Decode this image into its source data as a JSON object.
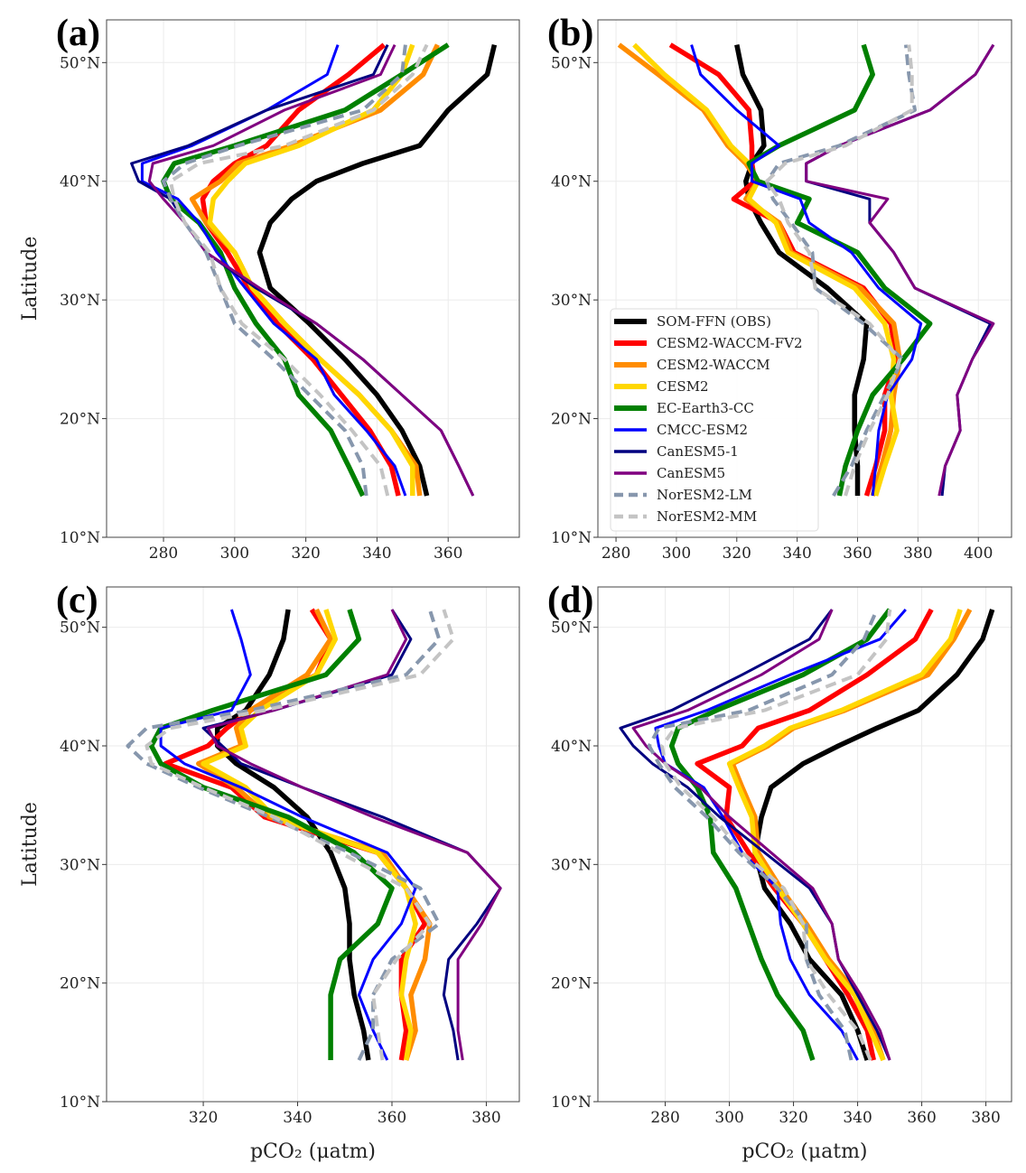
{
  "latitudes": [
    13.5,
    16,
    19,
    22,
    25,
    28,
    31,
    34,
    36.5,
    38.5,
    40,
    41.5,
    43,
    46,
    49,
    51.5
  ],
  "series_styles": [
    {
      "name": "SOM-FFN (OBS)",
      "color": "#000000",
      "style": "thick"
    },
    {
      "name": "CESM2-WACCM-FV2",
      "color": "#ff0000",
      "style": "thick"
    },
    {
      "name": "CESM2-WACCM",
      "color": "#ff8c00",
      "style": "thick"
    },
    {
      "name": "CESM2",
      "color": "#ffd700",
      "style": "thick"
    },
    {
      "name": "EC-Earth3-CC",
      "color": "#008000",
      "style": "thick"
    },
    {
      "name": "CMCC-ESM2",
      "color": "#0000ff",
      "style": "thin"
    },
    {
      "name": "CanESM5-1",
      "color": "#000080",
      "style": "thin"
    },
    {
      "name": "CanESM5",
      "color": "#800080",
      "style": "thin"
    },
    {
      "name": "NorESM2-LM",
      "color": "#8797ad",
      "style": "dashed"
    },
    {
      "name": "NorESM2-MM",
      "color": "#c4c4c4",
      "style": "dashed"
    }
  ],
  "chart_data": [
    {
      "type": "line",
      "label": "(a)",
      "xlabel": "",
      "ylabel": "Latitude",
      "xlim": [
        264,
        380
      ],
      "ylim": [
        10,
        53.6
      ],
      "grid": true,
      "xticks": [
        280,
        300,
        320,
        340,
        360
      ],
      "xtick_labels": [
        "280",
        "300",
        "320",
        "340",
        "360"
      ],
      "yticks": [
        10,
        20,
        30,
        40,
        50
      ],
      "ytick_labels": [
        "10°N",
        "20°N",
        "30°N",
        "40°N",
        "50°N"
      ],
      "series": [
        {
          "name": "SOM-FFN (OBS)",
          "values": [
            354,
            352,
            347,
            340,
            331,
            321,
            310,
            307,
            310,
            316,
            323,
            336,
            352,
            360,
            371,
            373
          ]
        },
        {
          "name": "CESM2-WACCM-FV2",
          "values": [
            346,
            344,
            338,
            330,
            322,
            312,
            304,
            298,
            292,
            291,
            294,
            300,
            309,
            318,
            332,
            342
          ]
        },
        {
          "name": "CESM2-WACCM",
          "values": [
            352,
            351,
            344,
            335,
            324,
            314,
            305,
            300,
            292,
            288,
            296,
            301,
            316,
            341,
            353,
            357
          ]
        },
        {
          "name": "CESM2",
          "values": [
            350,
            350,
            344,
            335,
            324,
            314,
            305,
            300,
            293,
            294,
            298,
            303,
            318,
            339,
            347,
            350
          ]
        },
        {
          "name": "EC-Earth3-CC",
          "values": [
            336,
            332,
            327,
            318,
            314,
            306,
            300,
            296,
            290,
            282,
            280,
            283,
            300,
            331,
            347,
            360
          ]
        },
        {
          "name": "CMCC-ESM2",
          "values": [
            348,
            345,
            337,
            328,
            323,
            311,
            303,
            295,
            290,
            284,
            274,
            274,
            288,
            309,
            326,
            329
          ]
        },
        {
          "name": "CanESM5-1",
          "values": [
            367,
            363,
            358,
            347,
            336,
            323,
            306,
            292,
            286,
            282,
            273,
            271,
            287,
            309,
            339,
            343
          ]
        },
        {
          "name": "CanESM5",
          "values": [
            367,
            363,
            358,
            347,
            336,
            323,
            307,
            292,
            286,
            280,
            276,
            277,
            294,
            314,
            341,
            345
          ]
        },
        {
          "name": "NorESM2-LM",
          "values": [
            337,
            336,
            331,
            321,
            311,
            300,
            296,
            292,
            286,
            282,
            280,
            286,
            301,
            336,
            347,
            348
          ]
        },
        {
          "name": "NorESM2-MM",
          "values": [
            343,
            341,
            333,
            324,
            314,
            302,
            296,
            293,
            286,
            283,
            282,
            290,
            314,
            339,
            350,
            354
          ]
        }
      ]
    },
    {
      "type": "line",
      "label": "(b)",
      "xlabel": "",
      "ylabel": "",
      "xlim": [
        274,
        411
      ],
      "ylim": [
        10,
        53.6
      ],
      "grid": true,
      "legend": "inside-lower-left",
      "xticks": [
        280,
        300,
        320,
        340,
        360,
        380,
        400
      ],
      "xtick_labels": [
        "280",
        "300",
        "320",
        "340",
        "360",
        "380",
        "400"
      ],
      "yticks": [
        10,
        20,
        30,
        40,
        50
      ],
      "ytick_labels": [
        "10°N",
        "20°N",
        "30°N",
        "40°N",
        "50°N"
      ],
      "series": [
        {
          "name": "SOM-FFN (OBS)",
          "values": [
            360,
            360,
            359,
            359,
            362,
            363,
            350,
            334,
            328,
            324,
            323,
            325,
            329,
            328,
            322,
            320
          ]
        },
        {
          "name": "CESM2-WACCM-FV2",
          "values": [
            363,
            366,
            369,
            369,
            373,
            371,
            362,
            339,
            334,
            319,
            326,
            325,
            325,
            324,
            314,
            298
          ]
        },
        {
          "name": "CESM2-WACCM",
          "values": [
            365,
            368,
            371,
            372,
            374,
            372,
            361,
            338,
            334,
            323,
            327,
            323,
            317,
            309,
            294,
            281
          ]
        },
        {
          "name": "CESM2",
          "values": [
            366,
            369,
            373,
            371,
            372,
            369,
            359,
            337,
            333,
            324,
            327,
            324,
            318,
            310,
            296,
            286
          ]
        },
        {
          "name": "EC-Earth3-CC",
          "values": [
            354,
            356,
            360,
            365,
            375,
            384,
            369,
            360,
            340,
            344,
            327,
            324,
            334,
            359,
            365,
            362
          ]
        },
        {
          "name": "CMCC-ESM2",
          "values": [
            365,
            366,
            367,
            370,
            378,
            381,
            367,
            358,
            344,
            341,
            325,
            325,
            334,
            320,
            308,
            305
          ]
        },
        {
          "name": "CanESM5-1",
          "values": [
            388,
            389,
            394,
            393,
            398,
            404,
            379,
            372,
            364,
            364,
            343,
            343,
            354,
            384,
            399,
            405
          ]
        },
        {
          "name": "CanESM5",
          "values": [
            387,
            389,
            394,
            393,
            398,
            405,
            379,
            372,
            364,
            370,
            343,
            343,
            354,
            384,
            399,
            405
          ]
        },
        {
          "name": "NorESM2-LM",
          "values": [
            352,
            358,
            363,
            369,
            375,
            362,
            346,
            345,
            338,
            332,
            330,
            334,
            354,
            379,
            377,
            376
          ]
        },
        {
          "name": "NorESM2-MM",
          "values": [
            356,
            359,
            364,
            370,
            374,
            364,
            346,
            344,
            337,
            334,
            330,
            336,
            356,
            378,
            378,
            377
          ]
        }
      ]
    },
    {
      "type": "line",
      "label": "(c)",
      "xlabel": "pCO₂ (μatm)",
      "ylabel": "Latitude",
      "xlim": [
        299.5,
        387
      ],
      "ylim": [
        10,
        53.4
      ],
      "grid": true,
      "xticks": [
        320,
        340,
        360,
        380
      ],
      "xtick_labels": [
        "320",
        "340",
        "360",
        "380"
      ],
      "yticks": [
        10,
        20,
        30,
        40,
        50
      ],
      "ytick_labels": [
        "10°N",
        "20°N",
        "30°N",
        "40°N",
        "50°N"
      ],
      "series": [
        {
          "name": "SOM-FFN (OBS)",
          "values": [
            355,
            354,
            352,
            351,
            351,
            350,
            347,
            342,
            335,
            327,
            323,
            323,
            329,
            334,
            337,
            338
          ]
        },
        {
          "name": "CESM2-WACCM-FV2",
          "values": [
            362,
            363,
            362,
            362,
            367,
            363,
            357,
            333,
            326,
            312,
            321,
            325,
            330,
            344,
            347,
            343
          ]
        },
        {
          "name": "CESM2-WACCM",
          "values": [
            363,
            365,
            364,
            367,
            368,
            363,
            358,
            334,
            327,
            319,
            328,
            327,
            330,
            342,
            347,
            344
          ]
        },
        {
          "name": "CESM2",
          "values": [
            363,
            364,
            362,
            363,
            365,
            363,
            357,
            335,
            329,
            320,
            329,
            328,
            332,
            344,
            348,
            346
          ]
        },
        {
          "name": "EC-Earth3-CC",
          "values": [
            347,
            347,
            347,
            349,
            357,
            360,
            352,
            338,
            320,
            311,
            309,
            311,
            322,
            346,
            353,
            351
          ]
        },
        {
          "name": "CMCC-ESM2",
          "values": [
            359,
            356,
            353,
            356,
            362,
            365,
            359,
            341,
            328,
            316,
            311,
            311,
            326,
            330,
            328,
            326
          ]
        },
        {
          "name": "CanESM5-1",
          "values": [
            374,
            373,
            371,
            372,
            378,
            383,
            376,
            358,
            341,
            328,
            324,
            320,
            335,
            360,
            364,
            360
          ]
        },
        {
          "name": "CanESM5",
          "values": [
            375,
            374,
            374,
            374,
            379,
            383,
            376,
            356,
            341,
            330,
            323,
            321,
            335,
            359,
            363,
            360
          ]
        },
        {
          "name": "NorESM2-LM",
          "values": [
            353,
            356,
            356,
            360,
            370,
            366,
            351,
            334,
            319,
            308,
            304,
            308,
            330,
            363,
            370,
            368
          ]
        },
        {
          "name": "NorESM2-MM",
          "values": [
            358,
            357,
            356,
            361,
            368,
            363,
            349,
            335,
            320,
            309,
            308,
            313,
            333,
            366,
            373,
            371
          ]
        }
      ]
    },
    {
      "type": "line",
      "label": "(d)",
      "xlabel": "pCO₂ (μatm)",
      "ylabel": "",
      "xlim": [
        259,
        388
      ],
      "ylim": [
        10,
        53.4
      ],
      "grid": true,
      "xticks": [
        280,
        300,
        320,
        340,
        360,
        380
      ],
      "xtick_labels": [
        "280",
        "300",
        "320",
        "340",
        "360",
        "380"
      ],
      "yticks": [
        10,
        20,
        30,
        40,
        50
      ],
      "ytick_labels": [
        "10°N",
        "20°N",
        "30°N",
        "40°N",
        "50°N"
      ],
      "series": [
        {
          "name": "SOM-FFN (OBS)",
          "values": [
            343,
            340,
            335,
            325,
            319,
            311,
            308,
            310,
            313,
            323,
            334,
            346,
            359,
            371,
            379,
            382
          ]
        },
        {
          "name": "CESM2-WACCM-FV2",
          "values": [
            345,
            343,
            337,
            330,
            323,
            314,
            306,
            299,
            300,
            290,
            304,
            309,
            325,
            343,
            358,
            363
          ]
        },
        {
          "name": "CESM2-WACCM",
          "values": [
            348,
            345,
            340,
            331,
            324,
            316,
            309,
            308,
            304,
            301,
            312,
            320,
            336,
            362,
            370,
            375
          ]
        },
        {
          "name": "CESM2",
          "values": [
            348,
            344,
            339,
            330,
            323,
            315,
            308,
            307,
            303,
            300,
            311,
            319,
            335,
            360,
            369,
            372
          ]
        },
        {
          "name": "EC-Earth3-CC",
          "values": [
            326,
            323,
            315,
            310,
            306,
            302,
            295,
            294,
            290,
            284,
            282,
            284,
            296,
            323,
            343,
            350
          ]
        },
        {
          "name": "CMCC-ESM2",
          "values": [
            340,
            335,
            325,
            319,
            316,
            315,
            304,
            298,
            292,
            280,
            278,
            277,
            293,
            319,
            347,
            355
          ]
        },
        {
          "name": "CanESM5-1",
          "values": [
            350,
            346,
            340,
            334,
            332,
            325,
            311,
            297,
            287,
            276,
            270,
            266,
            282,
            304,
            325,
            332
          ]
        },
        {
          "name": "CanESM5",
          "values": [
            350,
            347,
            341,
            334,
            332,
            326,
            313,
            300,
            291,
            280,
            274,
            270,
            287,
            310,
            328,
            332
          ]
        },
        {
          "name": "NorESM2-LM",
          "values": [
            338,
            336,
            328,
            324,
            324,
            315,
            303,
            293,
            283,
            278,
            275,
            278,
            306,
            332,
            342,
            346
          ]
        },
        {
          "name": "NorESM2-MM",
          "values": [
            344,
            340,
            331,
            324,
            323,
            317,
            304,
            295,
            285,
            280,
            279,
            283,
            311,
            340,
            349,
            350
          ]
        }
      ]
    }
  ]
}
